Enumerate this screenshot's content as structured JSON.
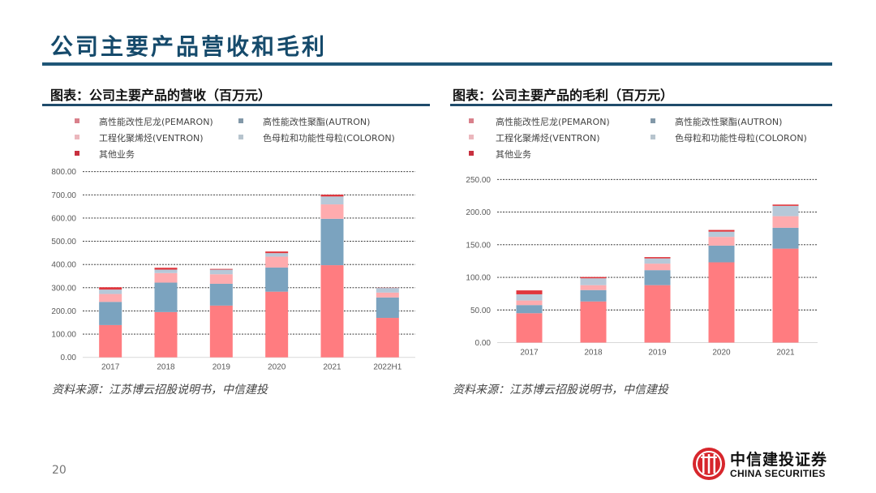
{
  "page": {
    "title": "公司主要产品营收和毛利",
    "page_number": "20",
    "logo_cn": "中信建投证券",
    "logo_en": "CHINA SECURITIES",
    "colors": {
      "brand": "#1F5677",
      "title": "#154A6B",
      "logo_red": "#D7262C"
    }
  },
  "series_meta": [
    {
      "name": "高性能改性尼龙(PEMARON)",
      "color": "#FF7C80"
    },
    {
      "name": "高性能改性聚酯(AUTRON)",
      "color": "#7BA3BF"
    },
    {
      "name": "工程化聚烯烃(VENTRON)",
      "color": "#FFABAE"
    },
    {
      "name": "色母粒和功能性母粒(COLORON)",
      "color": "#B6C8D8"
    },
    {
      "name": "其他业务",
      "color": "#E0363D"
    }
  ],
  "chart_data": [
    {
      "type": "bar",
      "stacked": true,
      "title": "图表：公司主要产品的营收（百万元）",
      "source": "资料来源：江苏博云招股说明书，中信建投",
      "xlabel": "",
      "ylabel": "",
      "categories": [
        "2017",
        "2018",
        "2019",
        "2020",
        "2021",
        "2022H1"
      ],
      "ylim": [
        0,
        800
      ],
      "yticks": [
        "0.00",
        "100.00",
        "200.00",
        "300.00",
        "400.00",
        "500.00",
        "600.00",
        "700.00",
        "800.00"
      ],
      "ytick_values": [
        0,
        100,
        200,
        300,
        400,
        500,
        600,
        700,
        800
      ],
      "grid": true,
      "legend_position": "top",
      "series": [
        {
          "name": "高性能改性尼龙(PEMARON)",
          "values": [
            139,
            195,
            223,
            283,
            397,
            170
          ]
        },
        {
          "name": "高性能改性聚酯(AUTRON)",
          "values": [
            100,
            127,
            94,
            104,
            200,
            88
          ]
        },
        {
          "name": "工程化聚烯烃(VENTRON)",
          "values": [
            34,
            41,
            41,
            47,
            62,
            21
          ]
        },
        {
          "name": "色母粒和功能性母粒(COLORON)",
          "values": [
            19,
            15,
            20,
            15,
            34,
            20
          ]
        },
        {
          "name": "其他业务",
          "values": [
            10,
            8,
            3,
            7,
            8,
            1
          ]
        }
      ]
    },
    {
      "type": "bar",
      "stacked": true,
      "title": "图表：公司主要产品的毛利（百万元）",
      "source": "资料来源：江苏博云招股说明书，中信建投",
      "xlabel": "",
      "ylabel": "",
      "categories": [
        "2017",
        "2018",
        "2019",
        "2020",
        "2021"
      ],
      "ylim": [
        0,
        250
      ],
      "yticks": [
        "0.00",
        "50.00",
        "100.00",
        "150.00",
        "200.00",
        "250.00"
      ],
      "ytick_values": [
        0,
        50,
        100,
        150,
        200,
        250
      ],
      "grid": true,
      "legend_position": "top",
      "series": [
        {
          "name": "高性能改性尼龙(PEMARON)",
          "values": [
            45,
            63,
            88,
            123,
            144
          ]
        },
        {
          "name": "高性能改性聚酯(AUTRON)",
          "values": [
            12.5,
            17.5,
            23,
            25.6,
            32
          ]
        },
        {
          "name": "工程化聚烯烃(VENTRON)",
          "values": [
            7,
            7.5,
            10,
            13.4,
            17.7
          ]
        },
        {
          "name": "色母粒和功能性母粒(COLORON)",
          "values": [
            9.5,
            10.5,
            8,
            8,
            15.8
          ]
        },
        {
          "name": "其他业务",
          "values": [
            6,
            2,
            2,
            2.6,
            2
          ]
        }
      ]
    }
  ]
}
